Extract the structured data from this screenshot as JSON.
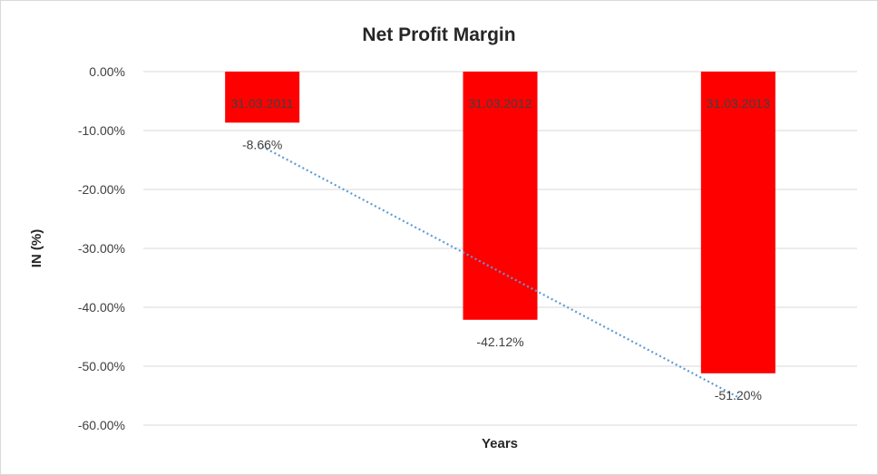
{
  "chart_data": {
    "type": "bar",
    "title": "Net Profit Margin",
    "xlabel": "Years",
    "ylabel": "IN (%)",
    "categories": [
      "31.03.2011",
      "31.03.2012",
      "31.03.2013"
    ],
    "values": [
      -8.66,
      -42.12,
      -51.2
    ],
    "data_labels": [
      "-8.66%",
      "-42.12%",
      "-51.20%"
    ],
    "yticks": [
      0,
      -10,
      -20,
      -30,
      -40,
      -50,
      -60
    ],
    "ytick_labels": [
      "0.00%",
      "-10.00%",
      "-20.00%",
      "-30.00%",
      "-40.00%",
      "-50.00%",
      "-60.00%"
    ],
    "ylim": [
      -60,
      0
    ],
    "grid": true,
    "legend": "none",
    "trendline": {
      "type": "linear",
      "style": "dotted"
    },
    "colors": {
      "bar": "#ff0000",
      "trendline": "#5b9bd5",
      "grid": "#d9d9d9"
    }
  }
}
